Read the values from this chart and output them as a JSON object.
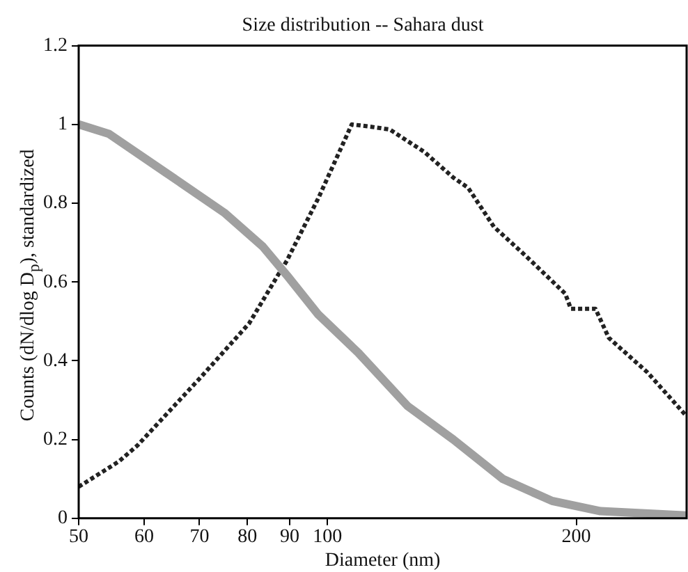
{
  "chart_data": {
    "type": "line",
    "title": "Size distribution -- Sahara dust",
    "xlabel": "Diameter (nm)",
    "ylabel": "Counts (dN/dlog D$_{p}$), standardized",
    "log": "x",
    "xlim": [
      50,
      272
    ],
    "xticks": [
      50,
      60,
      70,
      80,
      90,
      100,
      200
    ],
    "ylim": [
      0,
      1.2
    ],
    "yticks": [
      0,
      0.2,
      0.4,
      0.6,
      0.8,
      1,
      1.2
    ],
    "grid": false,
    "legend": false,
    "marker": "none",
    "series": [
      {
        "color": "#a0a0a0",
        "line_style": "solid",
        "x": [
          50,
          54.4,
          63.9,
          75,
          83.5,
          89.3,
          97.5,
          109,
          125,
          142,
          163,
          187,
          214,
          272
        ],
        "values": [
          1.0,
          0.976,
          0.876,
          0.776,
          0.69,
          0.617,
          0.517,
          0.42,
          0.285,
          0.2,
          0.1,
          0.044,
          0.018,
          0.007
        ]
      },
      {
        "color": "#222222",
        "line_style": "dotted",
        "x": [
          50,
          55.9,
          58.9,
          70.4,
          80.4,
          87.1,
          89.3,
          97.5,
          107,
          113,
          119,
          131,
          142,
          148,
          159,
          174,
          194,
          197,
          211,
          219,
          244,
          272
        ],
        "values": [
          0.08,
          0.144,
          0.185,
          0.36,
          0.495,
          0.617,
          0.654,
          0.813,
          1.0,
          0.994,
          0.987,
          0.93,
          0.865,
          0.839,
          0.74,
          0.665,
          0.57,
          0.532,
          0.532,
          0.458,
          0.37,
          0.259
        ]
      }
    ]
  }
}
